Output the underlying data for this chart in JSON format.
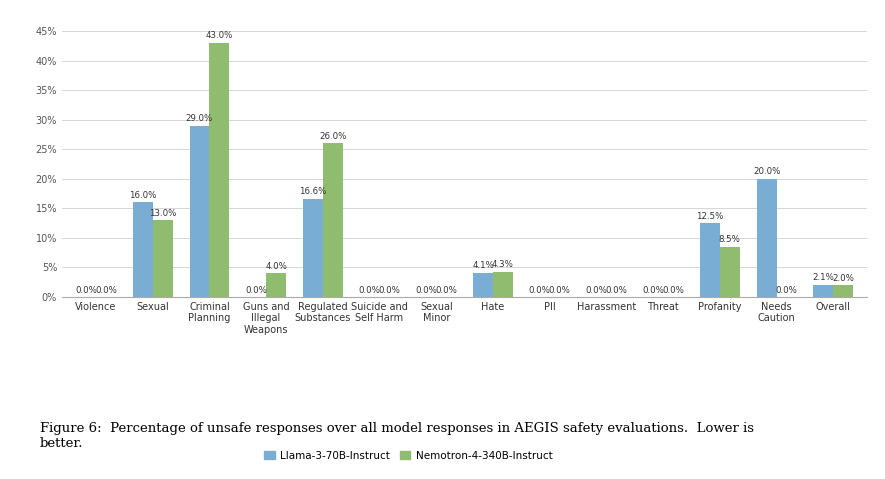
{
  "categories": [
    "Violence",
    "Sexual",
    "Criminal\nPlanning",
    "Guns and\nIllegal\nWeapons",
    "Regulated\nSubstances",
    "Suicide and\nSelf Harm",
    "Sexual\nMinor",
    "Hate",
    "PII",
    "Harassment",
    "Threat",
    "Profanity",
    "Needs\nCaution",
    "Overall"
  ],
  "llama_values": [
    0.0,
    16.0,
    29.0,
    0.0,
    16.6,
    0.0,
    0.0,
    4.1,
    0.0,
    0.0,
    0.0,
    12.5,
    20.0,
    2.1
  ],
  "nemotron_values": [
    0.0,
    13.0,
    43.0,
    4.0,
    26.0,
    0.0,
    0.0,
    4.3,
    0.0,
    0.0,
    0.0,
    8.5,
    0.0,
    2.0
  ],
  "llama_labels": [
    "0.0%",
    "16.0%",
    "29.0%",
    "0.0%",
    "16.6%",
    "0.0%",
    "0.0%",
    "4.1%",
    "0.0%",
    "0.0%",
    "0.0%",
    "12.5%",
    "20.0%",
    "2.1%"
  ],
  "nemotron_labels": [
    "0.0%",
    "13.0%",
    "43.0%",
    "4.0%",
    "26.0%",
    "0.0%",
    "0.0%",
    "4.3%",
    "0.0%",
    "0.0%",
    "0.0%",
    "8.5%",
    "0.0%",
    "2.0%"
  ],
  "llama_color": "#7aadd4",
  "nemotron_color": "#8fbc6e",
  "llama_legend": "Llama-3-70B-Instruct",
  "nemotron_legend": "Nemotron-4-340B-Instruct",
  "ylim": [
    0,
    47
  ],
  "yticks": [
    0,
    5,
    10,
    15,
    20,
    25,
    30,
    35,
    40,
    45
  ],
  "ytick_labels": [
    "0%",
    "5%",
    "10%",
    "15%",
    "20%",
    "25%",
    "30%",
    "35%",
    "40%",
    "45%"
  ],
  "bar_width": 0.35,
  "figure_caption": "Figure 6:  Percentage of unsafe responses over all model responses in AEGIS safety evaluations.  Lower is\nbetter.",
  "background_color": "#ffffff",
  "label_fontsize": 6.2,
  "tick_fontsize": 7.0,
  "legend_fontsize": 7.5,
  "caption_fontsize": 9.5
}
